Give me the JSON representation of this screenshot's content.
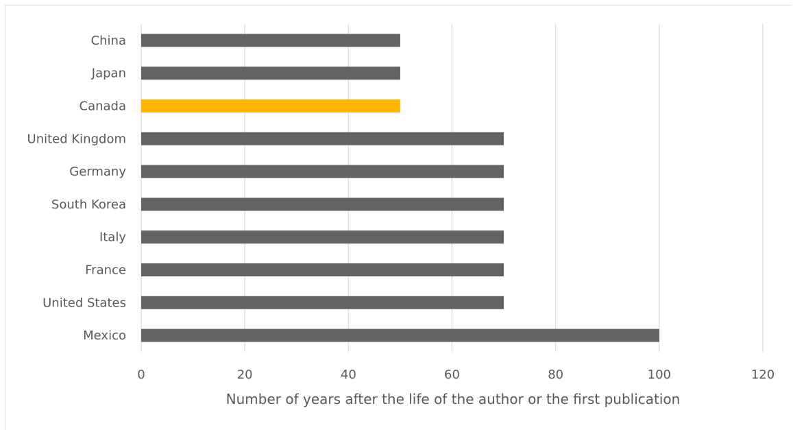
{
  "chart_data": {
    "type": "bar",
    "orientation": "horizontal",
    "title": "",
    "xlabel": "Number of years after the life of the author or the first publication",
    "ylabel": "",
    "categories": [
      "China",
      "Japan",
      "Canada",
      "United Kingdom",
      "Germany",
      "South Korea",
      "Italy",
      "France",
      "United States",
      "Mexico"
    ],
    "values": [
      50,
      50,
      50,
      70,
      70,
      70,
      70,
      70,
      70,
      100
    ],
    "highlight": "Canada",
    "xlim": [
      0,
      120
    ],
    "xticks": [
      0,
      20,
      40,
      60,
      80,
      100,
      120
    ],
    "grid": "vertical",
    "legend": "none",
    "colors": {
      "bar": "#636363",
      "highlight": "#ffb400",
      "grid": "#d9d9d9",
      "text": "#595959"
    }
  }
}
